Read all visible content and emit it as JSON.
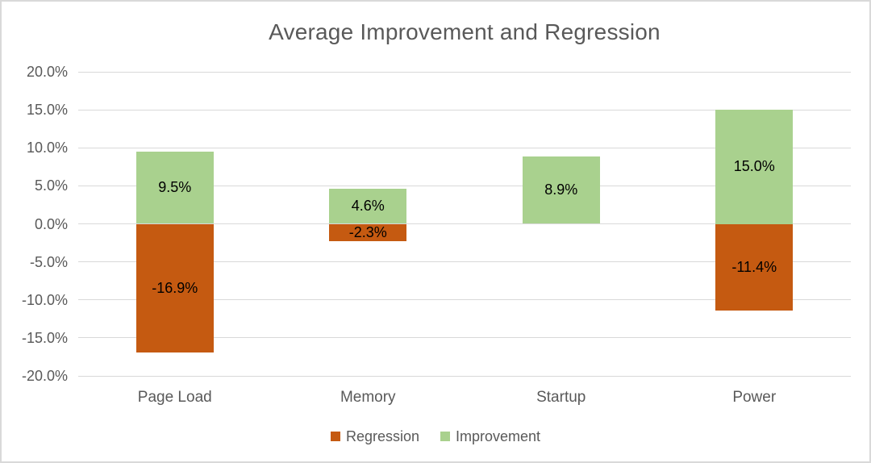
{
  "window": {
    "background_color": "#FFFFFF",
    "border_color": "#D9D9D9"
  },
  "chart_data": {
    "type": "bar",
    "stacked": true,
    "orientation": "vertical",
    "title": "Average Improvement and Regression",
    "categories": [
      "Page Load",
      "Memory",
      "Startup",
      "Power"
    ],
    "series": [
      {
        "name": "Regression",
        "color": "#C55A11",
        "values": [
          -16.9,
          -2.3,
          0,
          -11.4
        ],
        "labels": [
          "-16.9%",
          "-2.3%",
          "",
          "-11.4%"
        ]
      },
      {
        "name": "Improvement",
        "color": "#A9D18E",
        "values": [
          9.5,
          4.6,
          8.9,
          15.0
        ],
        "labels": [
          "9.5%",
          "4.6%",
          "8.9%",
          "15.0%"
        ]
      }
    ],
    "ylim": [
      -20,
      20
    ],
    "ytick_values": [
      20,
      15,
      10,
      5,
      0,
      -5,
      -10,
      -15,
      -20
    ],
    "ytick_labels": [
      "20.0%",
      "15.0%",
      "10.0%",
      "5.0%",
      "0.0%",
      "-5.0%",
      "-10.0%",
      "-15.0%",
      "-20.0%"
    ],
    "grid": true,
    "gridline_color": "#D9D9D9",
    "legend_position": "bottom",
    "axis_text_color": "#595959",
    "title_color": "#595959",
    "data_label_color": "#000000"
  }
}
